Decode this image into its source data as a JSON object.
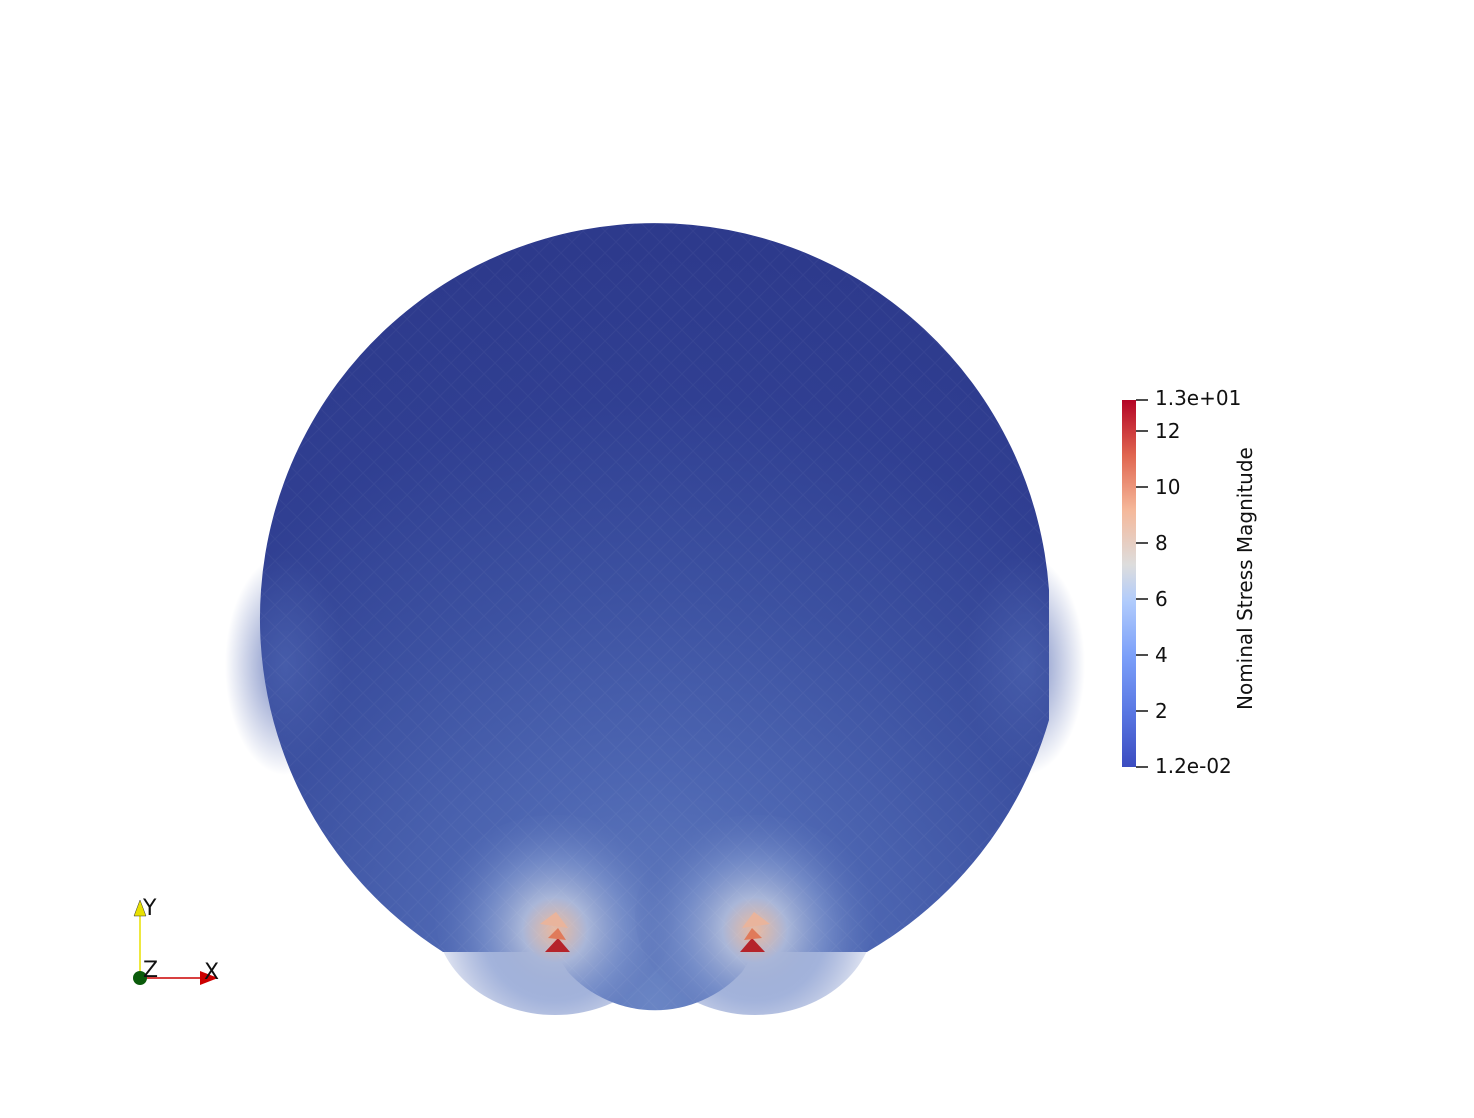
{
  "view": {
    "background": "#ffffff",
    "field_name": "Nominal Stress Magnitude",
    "field_range": [
      0.012,
      13.0
    ],
    "mesh_low_color": "#2f3c8e",
    "mesh_mid_color": "#4e67b4",
    "mesh_hot_color": "#c83a2e"
  },
  "scalar_bar": {
    "title": "Nominal Stress Magnitude",
    "labels": [
      "1.3e+01",
      "12",
      "10",
      "8",
      "6",
      "4",
      "2",
      "1.2e-02"
    ],
    "label_values": [
      13.0,
      12,
      10,
      8,
      6,
      4,
      2,
      0.012
    ],
    "colormap": "Cool to Warm",
    "colors": {
      "min": "#3b4cc0",
      "low": "#7b9ff9",
      "mid": "#dddddd",
      "high": "#f49a7b",
      "max": "#b40426"
    }
  },
  "orientation_axes": {
    "x_label": "X",
    "y_label": "Y",
    "z_label": "Z",
    "x_color": "#cc0000",
    "y_color": "#e8e000",
    "z_color": "#0b5b0b"
  }
}
